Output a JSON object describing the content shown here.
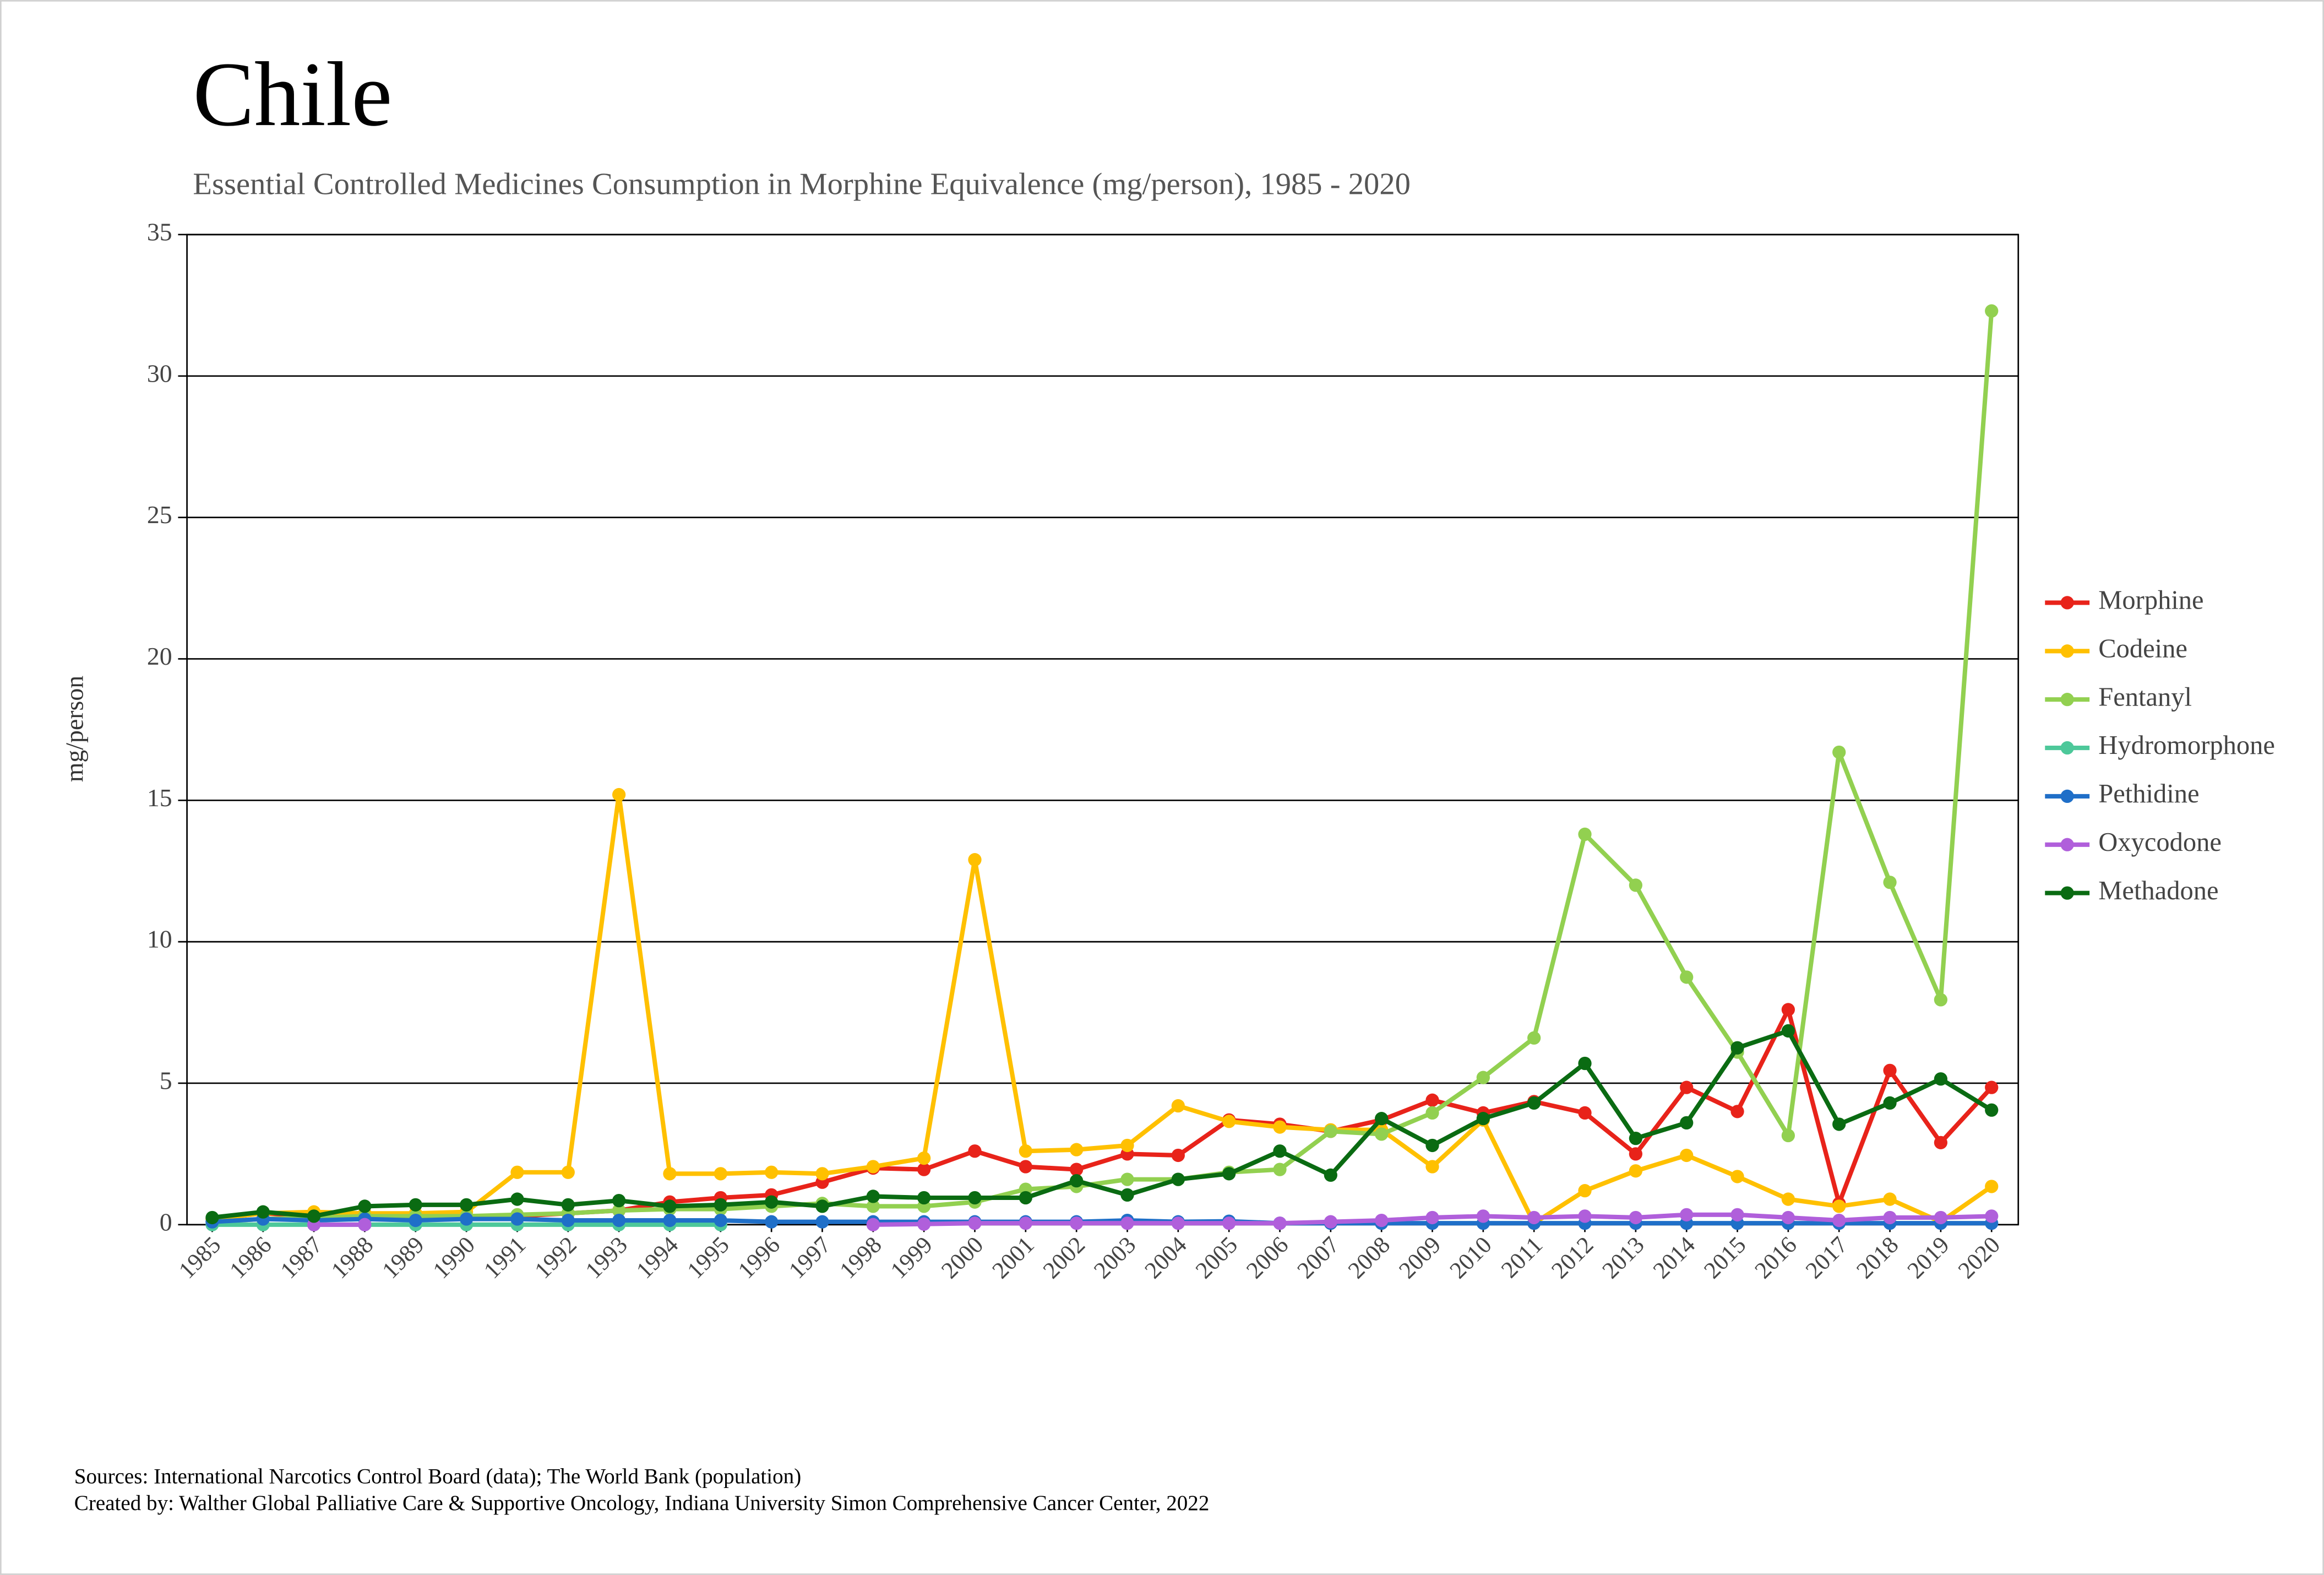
{
  "chart_data": {
    "type": "line",
    "title": "Chile",
    "subtitle": "Essential Controlled Medicines Consumption in Morphine Equivalence (mg/person), 1985 - 2020",
    "y_label": "mg/person",
    "categories": [
      "1985",
      "1986",
      "1987",
      "1988",
      "1989",
      "1990",
      "1991",
      "1992",
      "1993",
      "1994",
      "1995",
      "1996",
      "1997",
      "1998",
      "1999",
      "2000",
      "2001",
      "2002",
      "2003",
      "2004",
      "2005",
      "2006",
      "2007",
      "2008",
      "2009",
      "2010",
      "2011",
      "2012",
      "2013",
      "2014",
      "2015",
      "2016",
      "2017",
      "2018",
      "2019",
      "2020"
    ],
    "ylim": [
      0,
      35
    ],
    "yticks": [
      0,
      5,
      10,
      15,
      20,
      25,
      30,
      35
    ],
    "grid": true,
    "legend": "right",
    "series": [
      {
        "name": "Morphine",
        "color": "#e8231a",
        "values": [
          0.2,
          0.4,
          0.3,
          0.4,
          0.3,
          0.3,
          0.3,
          0.4,
          0.5,
          0.8,
          0.95,
          1.05,
          1.5,
          2.0,
          1.95,
          2.6,
          2.05,
          1.95,
          2.5,
          2.45,
          3.7,
          3.55,
          3.3,
          3.7,
          4.4,
          3.95,
          4.35,
          3.95,
          2.5,
          4.85,
          4.0,
          7.6,
          0.75,
          5.45,
          2.9,
          4.85
        ]
      },
      {
        "name": "Codeine",
        "color": "#ffc000",
        "values": [
          0.2,
          0.4,
          0.45,
          0.4,
          0.4,
          0.45,
          1.85,
          1.85,
          15.2,
          1.8,
          1.8,
          1.85,
          1.8,
          2.05,
          2.35,
          12.9,
          2.6,
          2.65,
          2.8,
          4.2,
          3.65,
          3.45,
          3.35,
          3.35,
          2.05,
          3.7,
          0.05,
          1.2,
          1.9,
          2.45,
          1.7,
          0.9,
          0.65,
          0.9,
          0.1,
          1.35
        ]
      },
      {
        "name": "Fentanyl",
        "color": "#92d050",
        "values": [
          0.1,
          0.2,
          0.25,
          0.3,
          0.3,
          0.3,
          0.35,
          0.4,
          0.5,
          0.55,
          0.55,
          0.65,
          0.75,
          0.65,
          0.65,
          0.8,
          1.25,
          1.35,
          1.6,
          1.6,
          1.85,
          1.95,
          3.3,
          3.2,
          3.95,
          5.2,
          6.6,
          13.8,
          12.0,
          8.75,
          6.1,
          3.15,
          16.7,
          12.1,
          7.95,
          32.3
        ]
      },
      {
        "name": "Hydromorphone",
        "color": "#4dc89a",
        "values": [
          0,
          0,
          0,
          0,
          0,
          0,
          0,
          0,
          0,
          0,
          0,
          null,
          null,
          null,
          null,
          null,
          null,
          null,
          null,
          null,
          null,
          null,
          null,
          null,
          null,
          null,
          null,
          null,
          null,
          null,
          null,
          null,
          null,
          null,
          null,
          null
        ]
      },
      {
        "name": "Pethidine",
        "color": "#1f6fc8",
        "values": [
          0.1,
          0.2,
          0.15,
          0.2,
          0.15,
          0.2,
          0.2,
          0.15,
          0.15,
          0.15,
          0.15,
          0.1,
          0.1,
          0.1,
          0.1,
          0.1,
          0.1,
          0.1,
          0.15,
          0.1,
          0.12,
          0.05,
          0.05,
          0.05,
          0.05,
          0.05,
          0.05,
          0.05,
          0.05,
          0.05,
          0.05,
          0.05,
          0.05,
          0.05,
          0.05,
          0.05
        ]
      },
      {
        "name": "Oxycodone",
        "color": "#b05fdb",
        "values": [
          null,
          null,
          0,
          0,
          null,
          null,
          null,
          null,
          null,
          null,
          null,
          null,
          null,
          0,
          0.02,
          0.05,
          0.05,
          0.05,
          0.05,
          0.05,
          0.05,
          0.05,
          0.1,
          0.15,
          0.25,
          0.3,
          0.25,
          0.3,
          0.25,
          0.35,
          0.35,
          0.25,
          0.15,
          0.25,
          0.25,
          0.3
        ]
      },
      {
        "name": "Methadone",
        "color": "#0a6b12",
        "values": [
          0.25,
          0.45,
          0.3,
          0.65,
          0.7,
          0.7,
          0.9,
          0.7,
          0.85,
          0.65,
          0.7,
          0.8,
          0.65,
          1.0,
          0.95,
          0.95,
          0.95,
          1.55,
          1.05,
          1.6,
          1.8,
          2.6,
          1.75,
          3.75,
          2.8,
          3.75,
          4.3,
          5.7,
          3.05,
          3.6,
          6.25,
          6.85,
          3.55,
          4.3,
          5.15,
          4.05
        ]
      }
    ],
    "sources": "Sources: International Narcotics Control Board (data); The World Bank (population)",
    "credits": "Created by: Walther Global Palliative Care & Supportive Oncology, Indiana University Simon Comprehensive Cancer Center, 2022"
  }
}
